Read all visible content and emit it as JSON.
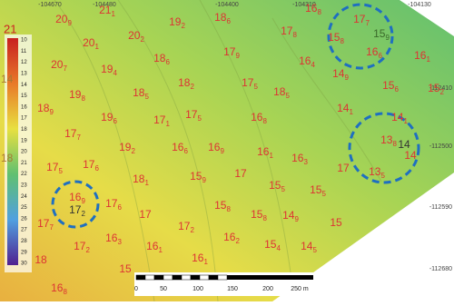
{
  "map": {
    "x_axis_labels": [
      "-104670",
      "-104480",
      "-104400",
      "-104310",
      "-104130"
    ],
    "y_axis_labels": [
      "-112410",
      "-112500",
      "-112590",
      "-112680"
    ],
    "colorbar": {
      "top_label": "21",
      "side_labels": [
        "14",
        "18"
      ],
      "ticks": [
        "10",
        "11",
        "12",
        "13",
        "14",
        "15",
        "16",
        "17",
        "18",
        "19",
        "20",
        "21",
        "22",
        "23",
        "24",
        "25",
        "26",
        "27",
        "28",
        "29",
        "30"
      ]
    },
    "scale_bar": [
      "0",
      "50",
      "100",
      "150",
      "200",
      "250 m"
    ],
    "labels": [
      {
        "main": "20",
        "sub": "9",
        "color": "#d33"
      },
      {
        "main": "21",
        "sub": "1",
        "color": "#d33"
      },
      {
        "main": "19",
        "sub": "2",
        "color": "#d33"
      },
      {
        "main": "18",
        "sub": "6",
        "color": "#d33"
      },
      {
        "main": "16",
        "sub": "8",
        "color": "#d33"
      },
      {
        "main": "17",
        "sub": "7",
        "color": "#d33"
      },
      {
        "main": "15",
        "sub": "8",
        "color": "#d33"
      },
      {
        "main": "15",
        "sub": "9",
        "color": "#3a6a2a"
      },
      {
        "main": "16",
        "sub": "6",
        "color": "#d33"
      },
      {
        "main": "16",
        "sub": "1",
        "color": "#d33"
      },
      {
        "main": "20",
        "sub": "1",
        "color": "#d33"
      },
      {
        "main": "20",
        "sub": "2",
        "color": "#d33"
      },
      {
        "main": "17",
        "sub": "8",
        "color": "#d33"
      },
      {
        "main": "18",
        "sub": "6",
        "color": "#d33"
      },
      {
        "main": "17",
        "sub": "9",
        "color": "#d33"
      },
      {
        "main": "16",
        "sub": "4",
        "color": "#d33"
      },
      {
        "main": "14",
        "sub": "9",
        "color": "#d33"
      },
      {
        "main": "15",
        "sub": "6",
        "color": "#d33"
      },
      {
        "main": "15",
        "sub": "2",
        "color": "#d33"
      },
      {
        "main": "20",
        "sub": "7",
        "color": "#d33"
      },
      {
        "main": "19",
        "sub": "4",
        "color": "#d33"
      },
      {
        "main": "18",
        "sub": "2",
        "color": "#d33"
      },
      {
        "main": "17",
        "sub": "5",
        "color": "#d33"
      },
      {
        "main": "18",
        "sub": "5",
        "color": "#d33"
      },
      {
        "main": "14",
        "sub": "1",
        "color": "#d33"
      },
      {
        "main": "14",
        "sub": "1",
        "color": "#d33"
      },
      {
        "main": "19",
        "sub": "8",
        "color": "#d33"
      },
      {
        "main": "18",
        "sub": "5",
        "color": "#d33"
      },
      {
        "main": "17",
        "sub": "5",
        "color": "#d33"
      },
      {
        "main": "16",
        "sub": "8",
        "color": "#d33"
      },
      {
        "main": "18",
        "sub": "9",
        "color": "#d33"
      },
      {
        "main": "19",
        "sub": "6",
        "color": "#d33"
      },
      {
        "main": "17",
        "sub": "1",
        "color": "#d33"
      },
      {
        "main": "17",
        "sub": "7",
        "color": "#d33"
      },
      {
        "main": "13",
        "sub": "8",
        "color": "#d33"
      },
      {
        "main": "14",
        "color": "#333"
      },
      {
        "main": "14",
        "color": "#d33"
      },
      {
        "main": "19",
        "sub": "2",
        "color": "#d33"
      },
      {
        "main": "16",
        "sub": "6",
        "color": "#d33"
      },
      {
        "main": "16",
        "sub": "9",
        "color": "#d33"
      },
      {
        "main": "16",
        "sub": "1",
        "color": "#d33"
      },
      {
        "main": "16",
        "sub": "3",
        "color": "#d33"
      },
      {
        "main": "17",
        "sub": "5",
        "color": "#d33"
      },
      {
        "main": "17",
        "sub": "6",
        "color": "#d33"
      },
      {
        "main": "17",
        "color": "#d33"
      },
      {
        "main": "13",
        "sub": "5",
        "color": "#d33"
      },
      {
        "main": "18",
        "sub": "1",
        "color": "#d33"
      },
      {
        "main": "15",
        "sub": "9",
        "color": "#d33"
      },
      {
        "main": "17",
        "color": "#d33"
      },
      {
        "main": "15",
        "sub": "5",
        "color": "#d33"
      },
      {
        "main": "15",
        "sub": "5",
        "color": "#d33"
      },
      {
        "main": "16",
        "sub": "9",
        "color": "#d33"
      },
      {
        "main": "17",
        "sub": "2",
        "color": "#333"
      },
      {
        "main": "17",
        "sub": "7",
        "color": "#d33"
      },
      {
        "main": "17",
        "sub": "6",
        "color": "#d33"
      },
      {
        "main": "17",
        "color": "#d33"
      },
      {
        "main": "15",
        "sub": "8",
        "color": "#d33"
      },
      {
        "main": "15",
        "sub": "8",
        "color": "#d33"
      },
      {
        "main": "14",
        "sub": "9",
        "color": "#d33"
      },
      {
        "main": "15",
        "color": "#d33"
      },
      {
        "main": "17",
        "sub": "2",
        "color": "#d33"
      },
      {
        "main": "16",
        "sub": "2",
        "color": "#d33"
      },
      {
        "main": "16",
        "sub": "3",
        "color": "#d33"
      },
      {
        "main": "17",
        "sub": "2",
        "color": "#d33"
      },
      {
        "main": "16",
        "sub": "1",
        "color": "#d33"
      },
      {
        "main": "15",
        "sub": "4",
        "color": "#d33"
      },
      {
        "main": "14",
        "sub": "5",
        "color": "#d33"
      },
      {
        "main": "18",
        "color": "#d33"
      },
      {
        "main": "16",
        "sub": "1",
        "color": "#d33"
      },
      {
        "main": "15",
        "color": "#d33"
      },
      {
        "main": "16",
        "sub": "8",
        "color": "#d33"
      }
    ]
  }
}
